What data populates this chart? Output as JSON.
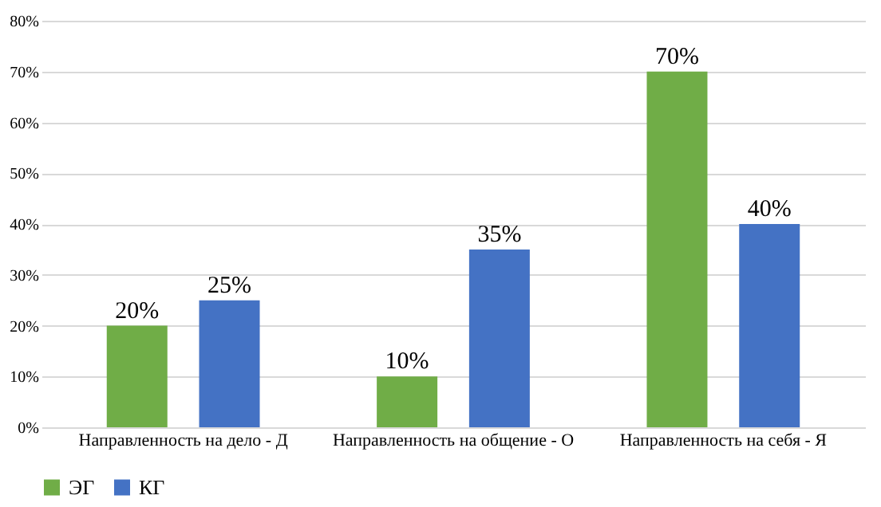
{
  "chart_data": {
    "type": "bar",
    "categories": [
      "Направленность на дело - Д",
      "Направленность на общение - О",
      "Направленность на себя - Я"
    ],
    "series": [
      {
        "name": "ЭГ",
        "color": "#70ad47",
        "values": [
          20,
          10,
          70
        ],
        "value_labels": [
          "20%",
          "10%",
          "70%"
        ]
      },
      {
        "name": "КГ",
        "color": "#4472c4",
        "values": [
          25,
          35,
          40
        ],
        "value_labels": [
          "25%",
          "35%",
          "40%"
        ]
      }
    ],
    "ylim": [
      0,
      80
    ],
    "yticks": [
      {
        "value": 0,
        "label": "0%"
      },
      {
        "value": 10,
        "label": "10%"
      },
      {
        "value": 20,
        "label": "20%"
      },
      {
        "value": 30,
        "label": "30%"
      },
      {
        "value": 40,
        "label": "40%"
      },
      {
        "value": 50,
        "label": "50%"
      },
      {
        "value": 60,
        "label": "60%"
      },
      {
        "value": 70,
        "label": "70%"
      },
      {
        "value": 80,
        "label": "80%"
      }
    ],
    "grid": "y",
    "legend": "bottom"
  }
}
